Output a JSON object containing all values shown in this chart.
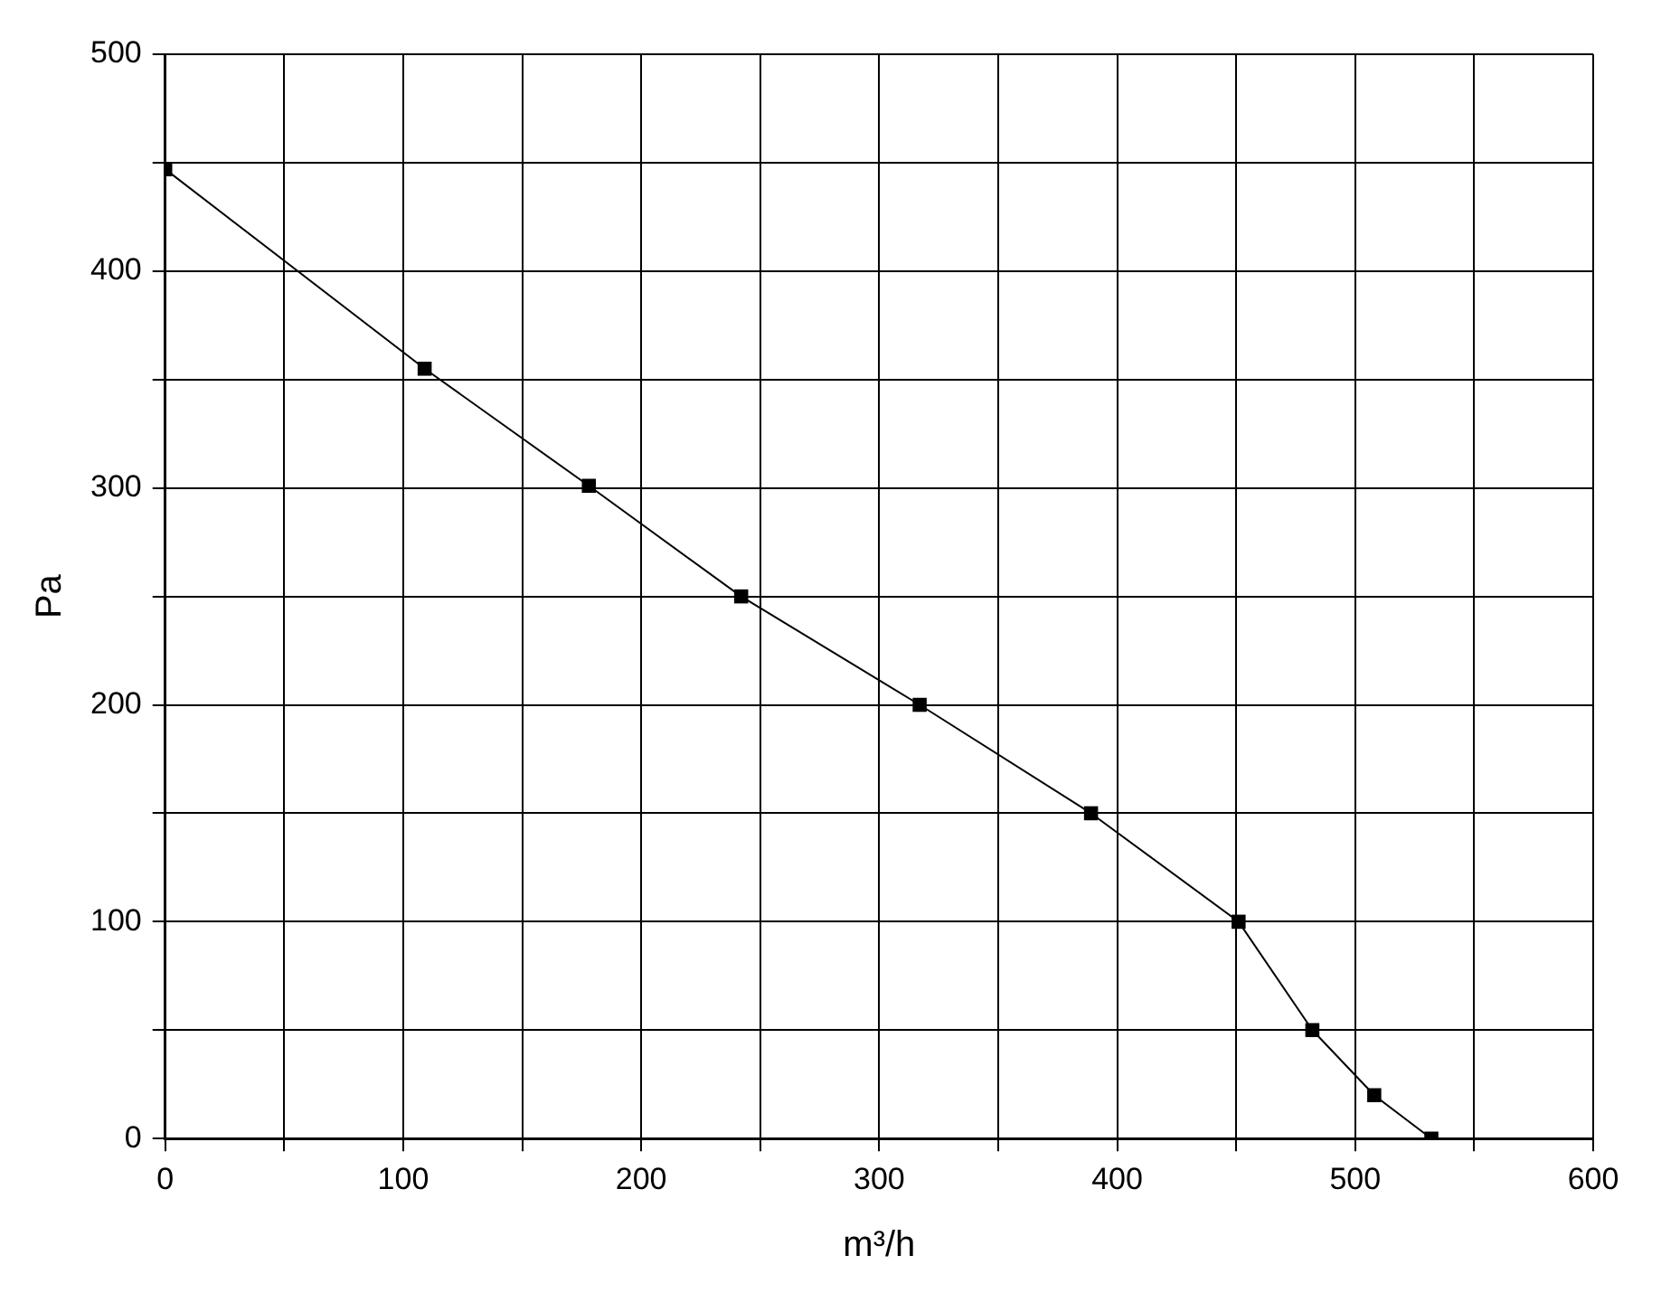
{
  "chart_data": {
    "type": "line",
    "xlabel": "m³/h",
    "ylabel": "Pa",
    "x": [
      0,
      109,
      178,
      242,
      317,
      389,
      451,
      482,
      508,
      532
    ],
    "series": [
      {
        "color": "#000000",
        "values": [
          447,
          355,
          301,
          250,
          200,
          150,
          100,
          50,
          20,
          0
        ]
      }
    ],
    "xlim": [
      0,
      600
    ],
    "xticks": [
      0,
      {
        "value": 50,
        "label": null
      },
      100,
      {
        "value": 150,
        "label": null
      },
      200,
      {
        "value": 250,
        "label": null
      },
      300,
      {
        "value": 350,
        "label": null
      },
      400,
      {
        "value": 450,
        "label": null
      },
      500,
      {
        "value": 550,
        "label": null
      },
      600
    ],
    "ylim": [
      0,
      500
    ],
    "yticks": [
      0,
      {
        "value": 50,
        "label": null
      },
      100,
      {
        "value": 150,
        "label": null
      },
      200,
      {
        "value": 250,
        "label": null
      },
      300,
      {
        "value": 350,
        "label": null
      },
      400,
      {
        "value": 450,
        "label": null
      },
      500
    ],
    "grid": true,
    "legend": false,
    "marker": "square",
    "line_style": "solid"
  }
}
